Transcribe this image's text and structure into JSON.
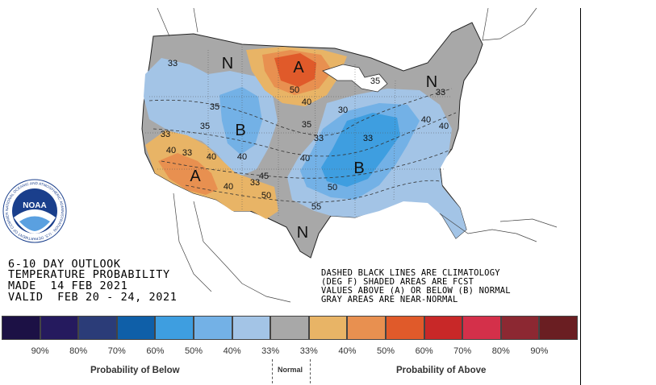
{
  "outlook": {
    "line1": "6-10 DAY OUTLOOK",
    "line2": "TEMPERATURE PROBABILITY",
    "line3": "MADE  14 FEB 2021",
    "line4": "VALID  FEB 20 - 24, 2021"
  },
  "notes": {
    "line1": "DASHED BLACK LINES ARE CLIMATOLOGY",
    "line2": "(DEG F) SHADED AREAS ARE FCST",
    "line3": "VALUES ABOVE (A) OR BELOW (B) NORMAL",
    "line4": "GRAY AREAS ARE NEAR-NORMAL"
  },
  "logo": {
    "text": "NOAA",
    "ring_text": "NATIONAL OCEANIC AND ATMOSPHERIC ADMINISTRATION · U.S. DEPARTMENT OF COMMERCE"
  },
  "map_labels": {
    "n_nw": "N",
    "n_south": "N",
    "n_ne": "N",
    "a_north": "A",
    "a_sw": "A",
    "b_west": "B",
    "b_east": "B"
  },
  "map_numbers": [
    {
      "id": "n33a",
      "text": "33"
    },
    {
      "id": "n35a",
      "text": "35"
    },
    {
      "id": "n40a",
      "text": "40"
    },
    {
      "id": "n50a",
      "text": "50"
    },
    {
      "id": "n40b",
      "text": "40"
    },
    {
      "id": "n35b",
      "text": "35"
    },
    {
      "id": "n33b",
      "text": "33"
    },
    {
      "id": "n40c",
      "text": "40"
    },
    {
      "id": "n33c",
      "text": "33"
    },
    {
      "id": "n40d",
      "text": "40"
    },
    {
      "id": "n33d",
      "text": "33"
    },
    {
      "id": "n45a",
      "text": "45"
    },
    {
      "id": "n50b",
      "text": "50"
    },
    {
      "id": "n40e",
      "text": "40"
    },
    {
      "id": "n33e",
      "text": "33"
    },
    {
      "id": "n40f",
      "text": "40"
    },
    {
      "id": "n50c",
      "text": "50"
    },
    {
      "id": "n55a",
      "text": "55"
    },
    {
      "id": "n33f",
      "text": "33"
    },
    {
      "id": "n40g",
      "text": "40"
    },
    {
      "id": "n33g",
      "text": "33"
    },
    {
      "id": "n35c",
      "text": "35"
    },
    {
      "id": "n30a",
      "text": "30"
    },
    {
      "id": "n35d",
      "text": "35"
    },
    {
      "id": "n40h",
      "text": "40"
    }
  ],
  "legend": {
    "swatches": [
      {
        "color": "#1c1145"
      },
      {
        "color": "#251a5e"
      },
      {
        "color": "#2b3c78"
      },
      {
        "color": "#0f5fa8"
      },
      {
        "color": "#3e9ee0"
      },
      {
        "color": "#73b1e6"
      },
      {
        "color": "#a3c4e6"
      },
      {
        "color": "#a8a8a8"
      },
      {
        "color": "#e8b466"
      },
      {
        "color": "#e89050"
      },
      {
        "color": "#e05a2a"
      },
      {
        "color": "#c82828"
      },
      {
        "color": "#d4304a"
      },
      {
        "color": "#8c2832"
      },
      {
        "color": "#6a1e22"
      }
    ],
    "percents": [
      "90%",
      "80%",
      "70%",
      "60%",
      "50%",
      "40%",
      "33%",
      "33%",
      "40%",
      "50%",
      "60%",
      "70%",
      "80%",
      "90%"
    ],
    "below_caption": "Probability of Below",
    "normal_caption": "Normal",
    "above_caption": "Probability of Above"
  }
}
